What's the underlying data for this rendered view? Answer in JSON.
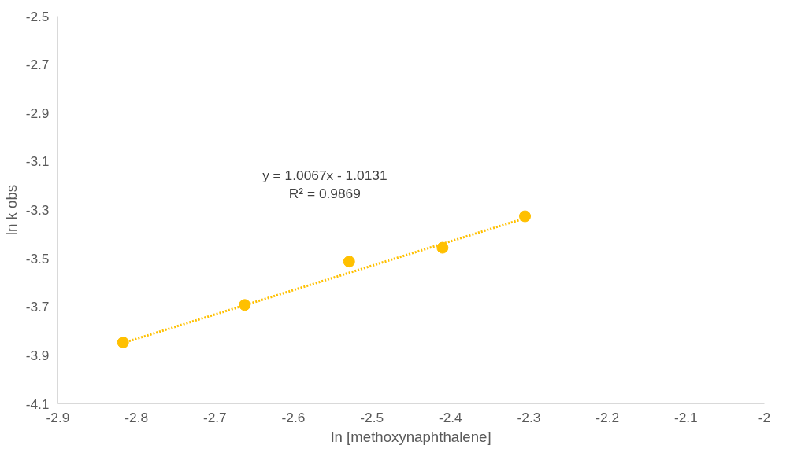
{
  "chart_data": {
    "type": "scatter",
    "xlabel": "ln [methoxynaphthalene]",
    "ylabel": "ln k obs",
    "xlim": [
      -2.9,
      -2.0
    ],
    "xticks": [
      -2.9,
      -2.8,
      -2.7,
      -2.6,
      -2.5,
      -2.4,
      -2.3,
      -2.2,
      -2.1,
      {
        "value": -2.0,
        "label": "-2"
      }
    ],
    "ylim": [
      -4.1,
      -2.5
    ],
    "yticks": [
      -4.1,
      -3.9,
      -3.7,
      -3.5,
      -3.3,
      -3.1,
      -2.9,
      -2.7,
      -2.5
    ],
    "grid": false,
    "marker": "circle",
    "series": [
      {
        "color": "#ffc000",
        "x": [
          -2.817,
          -2.662,
          -2.529,
          -2.41,
          -2.305
        ],
        "values": [
          -3.847,
          -3.692,
          -3.513,
          -3.456,
          -3.326
        ]
      },
      {
        "type": "line",
        "color": "#ffc000",
        "line_style": "dotted",
        "marker": "none",
        "x": [
          -2.817,
          -2.305
        ],
        "values": [
          -3.849,
          -3.334
        ]
      }
    ],
    "annotations": [
      "y = 1.0067x - 1.0131",
      "R² = 0.9869"
    ]
  }
}
